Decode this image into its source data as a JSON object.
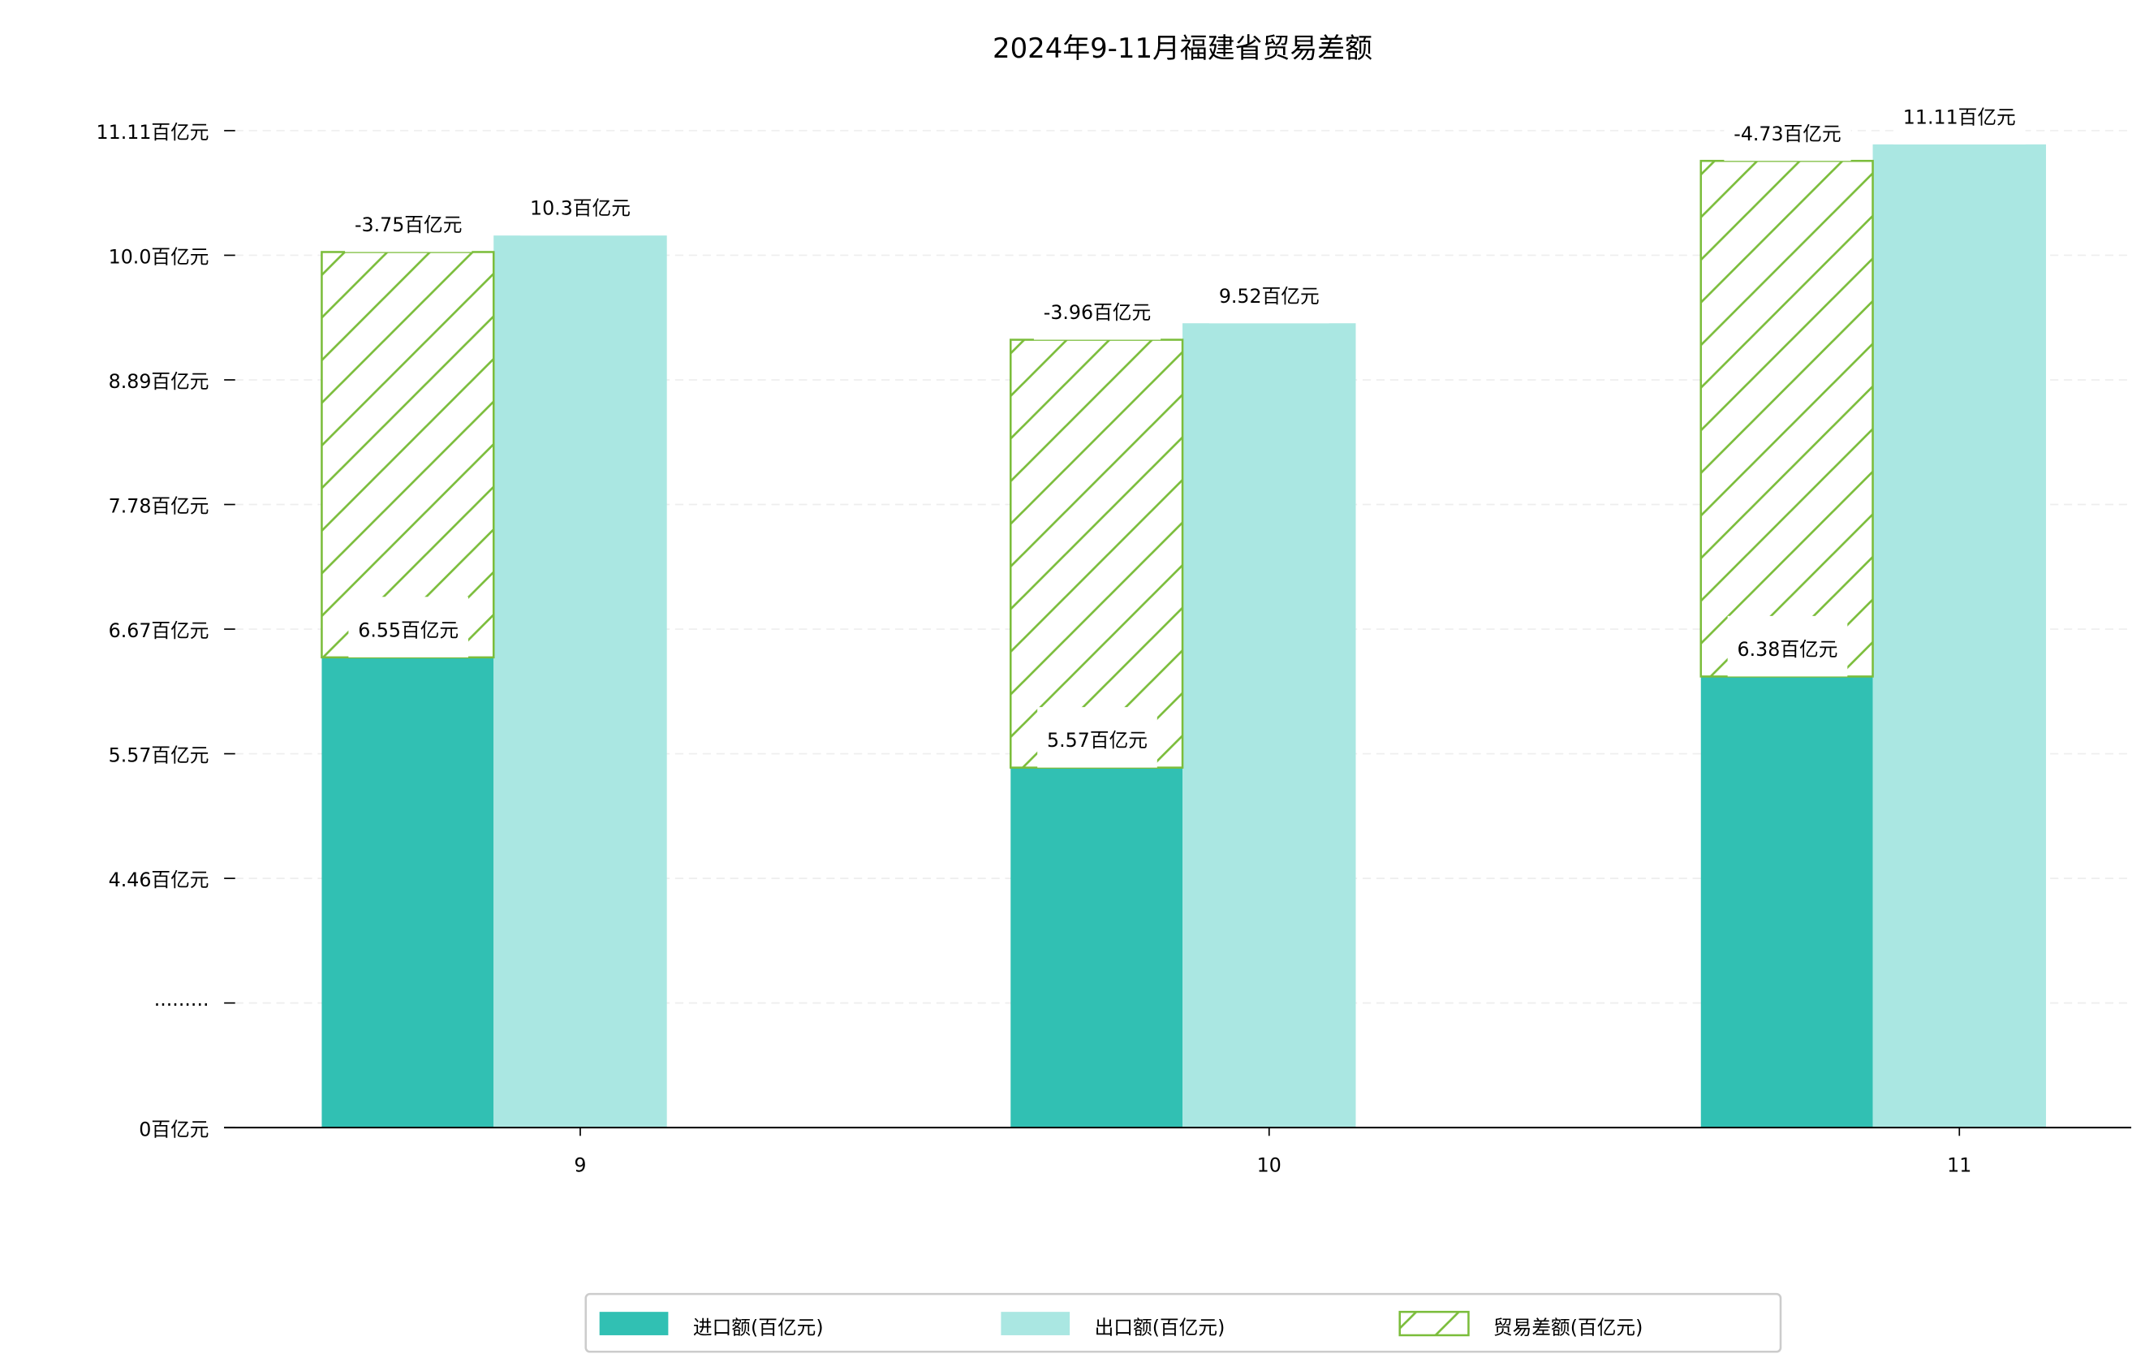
{
  "chart_data": {
    "type": "bar",
    "title": "2024年9-11月福建省贸易差额",
    "xlabel": "",
    "ylabel": "",
    "categories": [
      "9",
      "10",
      "11"
    ],
    "unit": "百亿元",
    "series": [
      {
        "name": "进口额(百亿元)",
        "values": [
          6.55,
          5.57,
          6.38
        ],
        "color": "#31c0b3",
        "labels": [
          "6.55百亿元",
          "5.57百亿元",
          "6.38百亿元"
        ]
      },
      {
        "name": "出口额(百亿元)",
        "values": [
          10.3,
          9.52,
          11.11
        ],
        "color": "#aae7e2",
        "labels": [
          "10.3百亿元",
          "9.52百亿元",
          "11.11百亿元"
        ]
      },
      {
        "name": "贸易差额(百亿元)",
        "values": [
          -3.75,
          -3.96,
          -4.73
        ],
        "color": "#7bbd3b",
        "pattern": "hatch",
        "labels": [
          "-3.75百亿元",
          "-3.96百亿元",
          "-4.73百亿元"
        ]
      }
    ],
    "yticks": [
      "0百亿元",
      "·········",
      "4.46百亿元",
      "5.57百亿元",
      "6.67百亿元",
      "7.78百亿元",
      "8.89百亿元",
      "10.0百亿元",
      "11.11百亿元"
    ],
    "axis_break": true,
    "ylim": [
      2.37,
      11.11
    ],
    "grid": true,
    "legend_position": "bottom-center"
  }
}
